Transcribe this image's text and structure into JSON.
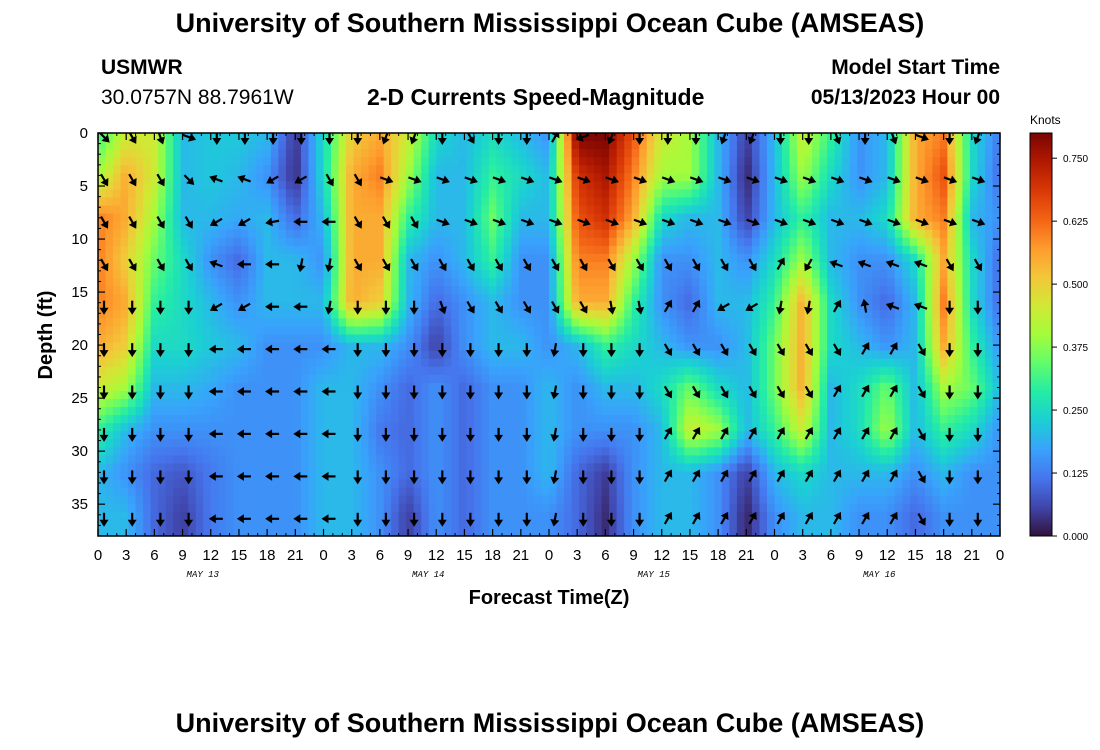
{
  "header": {
    "title": "University of Southern Mississippi Ocean Cube (AMSEAS)",
    "station_code": "USMWR",
    "station_coords": "30.0757N  88.7961W",
    "plot_title": "2-D Currents Speed-Magnitude",
    "model_start_label": "Model Start Time",
    "model_start_value": "05/13/2023 Hour 00"
  },
  "footer": {
    "title": "University of Southern Mississippi Ocean Cube (AMSEAS)"
  },
  "chart_data": {
    "type": "heatmap",
    "title": "2-D Currents Speed-Magnitude",
    "xlabel": "Forecast Time(Z)",
    "ylabel": "Depth (ft)",
    "x_hours": [
      0,
      96
    ],
    "y_depth_ft": [
      0,
      38
    ],
    "x_tick_labels": [
      "0",
      "3",
      "6",
      "9",
      "12",
      "15",
      "18",
      "21",
      "0",
      "3",
      "6",
      "9",
      "12",
      "15",
      "18",
      "21",
      "0",
      "3",
      "6",
      "9",
      "12",
      "15",
      "18",
      "21",
      "0",
      "3",
      "6",
      "9",
      "12",
      "15",
      "18",
      "21",
      "0"
    ],
    "y_tick_labels": [
      "0",
      "5",
      "10",
      "15",
      "20",
      "25",
      "30",
      "35"
    ],
    "y_tick_values": [
      0,
      5,
      10,
      15,
      20,
      25,
      30,
      35
    ],
    "date_labels": [
      {
        "label": "MAY 13",
        "hour": 12
      },
      {
        "label": "MAY 14",
        "hour": 36
      },
      {
        "label": "MAY 15",
        "hour": 60
      },
      {
        "label": "MAY 16",
        "hour": 84
      }
    ],
    "colorbar": {
      "unit": "Knots",
      "range": [
        0.0,
        0.8
      ],
      "tick_labels": [
        "0.000",
        "0.125",
        "0.250",
        "0.375",
        "0.500",
        "0.625",
        "0.750"
      ],
      "tick_values": [
        0.0,
        0.125,
        0.25,
        0.375,
        0.5,
        0.625,
        0.75
      ],
      "colors": [
        "#30123b",
        "#4145ab",
        "#4675ed",
        "#39a2fc",
        "#1bcfd4",
        "#24eca6",
        "#61fc6c",
        "#a4fc3b",
        "#d1e834",
        "#f3c63a",
        "#fe9b2d",
        "#f36315",
        "#d93806",
        "#b11901",
        "#7a0402"
      ]
    },
    "depths_ft": [
      0,
      4,
      8,
      12,
      16,
      20,
      24,
      28,
      32,
      36
    ],
    "times_hr": [
      0,
      3,
      6,
      9,
      12,
      15,
      18,
      21,
      24,
      27,
      30,
      33,
      36,
      39,
      42,
      45,
      48,
      51,
      54,
      57,
      60,
      63,
      66,
      69,
      72,
      75,
      78,
      81,
      84,
      87,
      90,
      93,
      96
    ],
    "speed_knots": [
      [
        0.3,
        0.45,
        0.45,
        0.2,
        0.22,
        0.22,
        0.2,
        0.04,
        0.25,
        0.5,
        0.55,
        0.45,
        0.25,
        0.2,
        0.25,
        0.2,
        0.15,
        0.8,
        0.8,
        0.65,
        0.45,
        0.4,
        0.2,
        0.05,
        0.2,
        0.45,
        0.3,
        0.15,
        0.2,
        0.55,
        0.6,
        0.25,
        0.12
      ],
      [
        0.4,
        0.55,
        0.45,
        0.2,
        0.22,
        0.2,
        0.15,
        0.03,
        0.25,
        0.55,
        0.6,
        0.4,
        0.2,
        0.2,
        0.3,
        0.25,
        0.2,
        0.7,
        0.75,
        0.6,
        0.4,
        0.4,
        0.2,
        0.02,
        0.2,
        0.4,
        0.25,
        0.15,
        0.2,
        0.55,
        0.65,
        0.25,
        0.1
      ],
      [
        0.6,
        0.55,
        0.4,
        0.2,
        0.2,
        0.18,
        0.2,
        0.1,
        0.2,
        0.55,
        0.55,
        0.3,
        0.2,
        0.2,
        0.35,
        0.2,
        0.2,
        0.65,
        0.7,
        0.55,
        0.25,
        0.2,
        0.2,
        0.05,
        0.2,
        0.3,
        0.2,
        0.2,
        0.25,
        0.55,
        0.6,
        0.2,
        0.15
      ],
      [
        0.6,
        0.5,
        0.35,
        0.25,
        0.15,
        0.1,
        0.2,
        0.2,
        0.15,
        0.55,
        0.55,
        0.2,
        0.15,
        0.2,
        0.3,
        0.15,
        0.15,
        0.6,
        0.6,
        0.4,
        0.15,
        0.15,
        0.2,
        0.15,
        0.25,
        0.4,
        0.2,
        0.15,
        0.15,
        0.25,
        0.55,
        0.25,
        0.1
      ],
      [
        0.6,
        0.55,
        0.3,
        0.25,
        0.2,
        0.15,
        0.2,
        0.2,
        0.2,
        0.55,
        0.5,
        0.2,
        0.1,
        0.15,
        0.2,
        0.15,
        0.15,
        0.55,
        0.55,
        0.3,
        0.15,
        0.1,
        0.2,
        0.2,
        0.3,
        0.55,
        0.25,
        0.15,
        0.1,
        0.2,
        0.6,
        0.25,
        0.1
      ],
      [
        0.55,
        0.5,
        0.25,
        0.25,
        0.22,
        0.2,
        0.15,
        0.15,
        0.15,
        0.2,
        0.2,
        0.15,
        0.05,
        0.15,
        0.2,
        0.2,
        0.15,
        0.2,
        0.3,
        0.25,
        0.2,
        0.15,
        0.15,
        0.2,
        0.35,
        0.55,
        0.25,
        0.2,
        0.15,
        0.2,
        0.55,
        0.3,
        0.15
      ],
      [
        0.45,
        0.4,
        0.2,
        0.2,
        0.18,
        0.15,
        0.15,
        0.15,
        0.2,
        0.2,
        0.15,
        0.1,
        0.15,
        0.1,
        0.15,
        0.15,
        0.2,
        0.15,
        0.2,
        0.2,
        0.25,
        0.35,
        0.25,
        0.2,
        0.35,
        0.55,
        0.2,
        0.25,
        0.35,
        0.2,
        0.4,
        0.35,
        0.2
      ],
      [
        0.3,
        0.2,
        0.15,
        0.15,
        0.15,
        0.15,
        0.15,
        0.15,
        0.2,
        0.2,
        0.12,
        0.1,
        0.15,
        0.1,
        0.15,
        0.15,
        0.2,
        0.15,
        0.15,
        0.15,
        0.2,
        0.45,
        0.4,
        0.2,
        0.3,
        0.45,
        0.2,
        0.25,
        0.4,
        0.2,
        0.3,
        0.25,
        0.15
      ],
      [
        0.2,
        0.15,
        0.1,
        0.08,
        0.12,
        0.15,
        0.15,
        0.15,
        0.2,
        0.2,
        0.15,
        0.1,
        0.15,
        0.1,
        0.15,
        0.15,
        0.2,
        0.1,
        0.05,
        0.15,
        0.2,
        0.2,
        0.15,
        0.05,
        0.2,
        0.25,
        0.2,
        0.2,
        0.2,
        0.15,
        0.2,
        0.15,
        0.15
      ],
      [
        0.2,
        0.2,
        0.1,
        0.05,
        0.12,
        0.15,
        0.15,
        0.15,
        0.2,
        0.2,
        0.15,
        0.05,
        0.15,
        0.1,
        0.15,
        0.15,
        0.15,
        0.1,
        0.03,
        0.15,
        0.2,
        0.2,
        0.15,
        0.02,
        0.15,
        0.2,
        0.2,
        0.15,
        0.15,
        0.1,
        0.15,
        0.15,
        0.15
      ]
    ],
    "arrow_angles_deg": [
      [
        45,
        60,
        70,
        20,
        90,
        90,
        90,
        90,
        90,
        90,
        110,
        110,
        90,
        60,
        90,
        90,
        300,
        160,
        110,
        90,
        90,
        90,
        110,
        110,
        90,
        90,
        70,
        90,
        70,
        20,
        90,
        110,
        90
      ],
      [
        60,
        60,
        60,
        45,
        200,
        200,
        150,
        150,
        60,
        60,
        20,
        20,
        20,
        20,
        20,
        20,
        20,
        20,
        20,
        20,
        20,
        20,
        20,
        20,
        20,
        20,
        20,
        20,
        20,
        20,
        20,
        20,
        0
      ],
      [
        60,
        60,
        60,
        60,
        150,
        150,
        170,
        180,
        180,
        60,
        60,
        60,
        20,
        20,
        20,
        20,
        20,
        20,
        20,
        20,
        20,
        20,
        20,
        20,
        20,
        20,
        20,
        20,
        20,
        20,
        20,
        20,
        0
      ],
      [
        60,
        60,
        60,
        60,
        200,
        180,
        180,
        100,
        100,
        60,
        60,
        60,
        60,
        60,
        60,
        60,
        60,
        60,
        60,
        60,
        60,
        60,
        60,
        60,
        300,
        120,
        200,
        200,
        200,
        200,
        60,
        60,
        60
      ],
      [
        90,
        90,
        90,
        90,
        150,
        150,
        180,
        180,
        100,
        90,
        90,
        90,
        70,
        60,
        60,
        60,
        60,
        60,
        80,
        80,
        300,
        300,
        150,
        150,
        100,
        100,
        300,
        260,
        200,
        200,
        90,
        90,
        90
      ],
      [
        90,
        90,
        90,
        90,
        180,
        180,
        180,
        180,
        180,
        90,
        90,
        90,
        90,
        90,
        90,
        90,
        100,
        90,
        90,
        90,
        60,
        60,
        60,
        60,
        60,
        60,
        60,
        300,
        300,
        60,
        90,
        90,
        90
      ],
      [
        90,
        90,
        90,
        90,
        180,
        180,
        180,
        180,
        180,
        90,
        90,
        90,
        90,
        90,
        90,
        90,
        100,
        90,
        90,
        90,
        60,
        60,
        60,
        60,
        60,
        60,
        300,
        300,
        300,
        60,
        90,
        90,
        90
      ],
      [
        90,
        90,
        90,
        90,
        180,
        180,
        180,
        180,
        180,
        90,
        90,
        90,
        90,
        90,
        90,
        90,
        100,
        90,
        90,
        90,
        300,
        300,
        300,
        300,
        300,
        300,
        300,
        300,
        300,
        60,
        90,
        90,
        90
      ],
      [
        90,
        90,
        90,
        90,
        180,
        180,
        180,
        180,
        180,
        90,
        90,
        90,
        90,
        90,
        90,
        90,
        100,
        90,
        90,
        90,
        300,
        300,
        300,
        300,
        300,
        300,
        300,
        300,
        300,
        60,
        90,
        90,
        90
      ],
      [
        90,
        90,
        90,
        90,
        180,
        180,
        180,
        180,
        180,
        90,
        90,
        90,
        90,
        90,
        90,
        90,
        100,
        90,
        90,
        90,
        300,
        300,
        300,
        300,
        300,
        300,
        300,
        300,
        300,
        60,
        90,
        90,
        90
      ]
    ]
  }
}
